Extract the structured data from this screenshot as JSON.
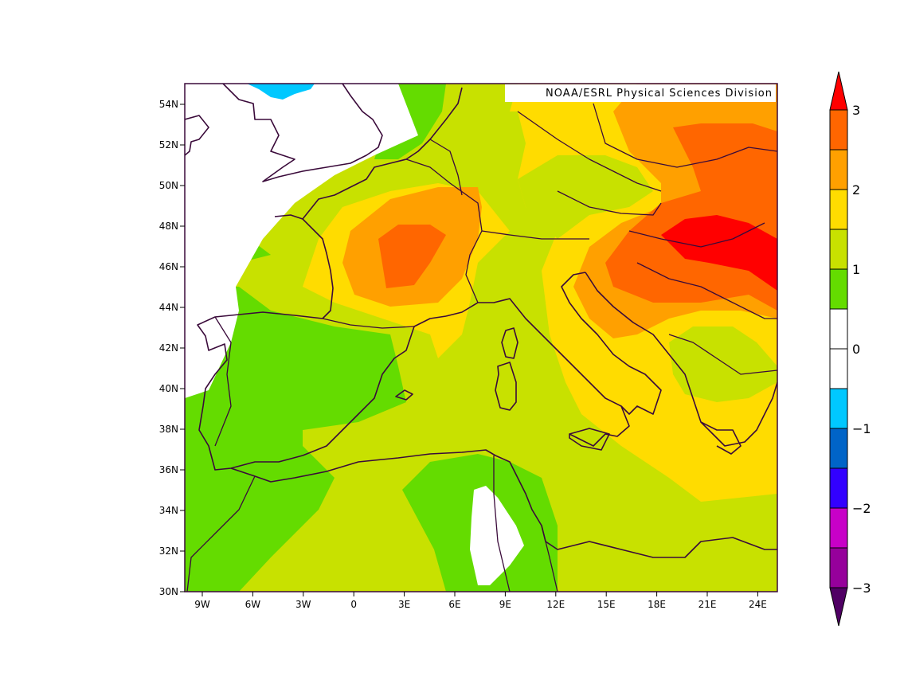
{
  "credit": "NOAA/ESRL Physical Sciences Division",
  "lon_labels": [
    "9W",
    "6W",
    "3W",
    "0",
    "3E",
    "6E",
    "9E",
    "12E",
    "15E",
    "18E",
    "21E",
    "24E"
  ],
  "lat_labels": [
    "54N",
    "52N",
    "50N",
    "48N",
    "46N",
    "44N",
    "42N",
    "40N",
    "38N",
    "36N",
    "34N",
    "32N",
    "30N"
  ],
  "colorbar": {
    "labels": [
      "3",
      "2",
      "1",
      "0",
      "−1",
      "−2",
      "−3"
    ],
    "colors": [
      "#ff0000",
      "#ff6600",
      "#ffa000",
      "#ffdc00",
      "#c8e100",
      "#64dc00",
      "#ffffff",
      "#ffffff",
      "#00c8ff",
      "#0064c8",
      "#3200ff",
      "#c800c8",
      "#96009b",
      "#500064"
    ]
  },
  "field_colors": {
    "c_neg": "#00c8ff",
    "c0": "#ffffff",
    "c1": "#64dc00",
    "c15": "#c8e100",
    "c2": "#ffdc00",
    "c25": "#ffa000",
    "c3": "#ff6600",
    "c35": "#ff0000"
  }
}
